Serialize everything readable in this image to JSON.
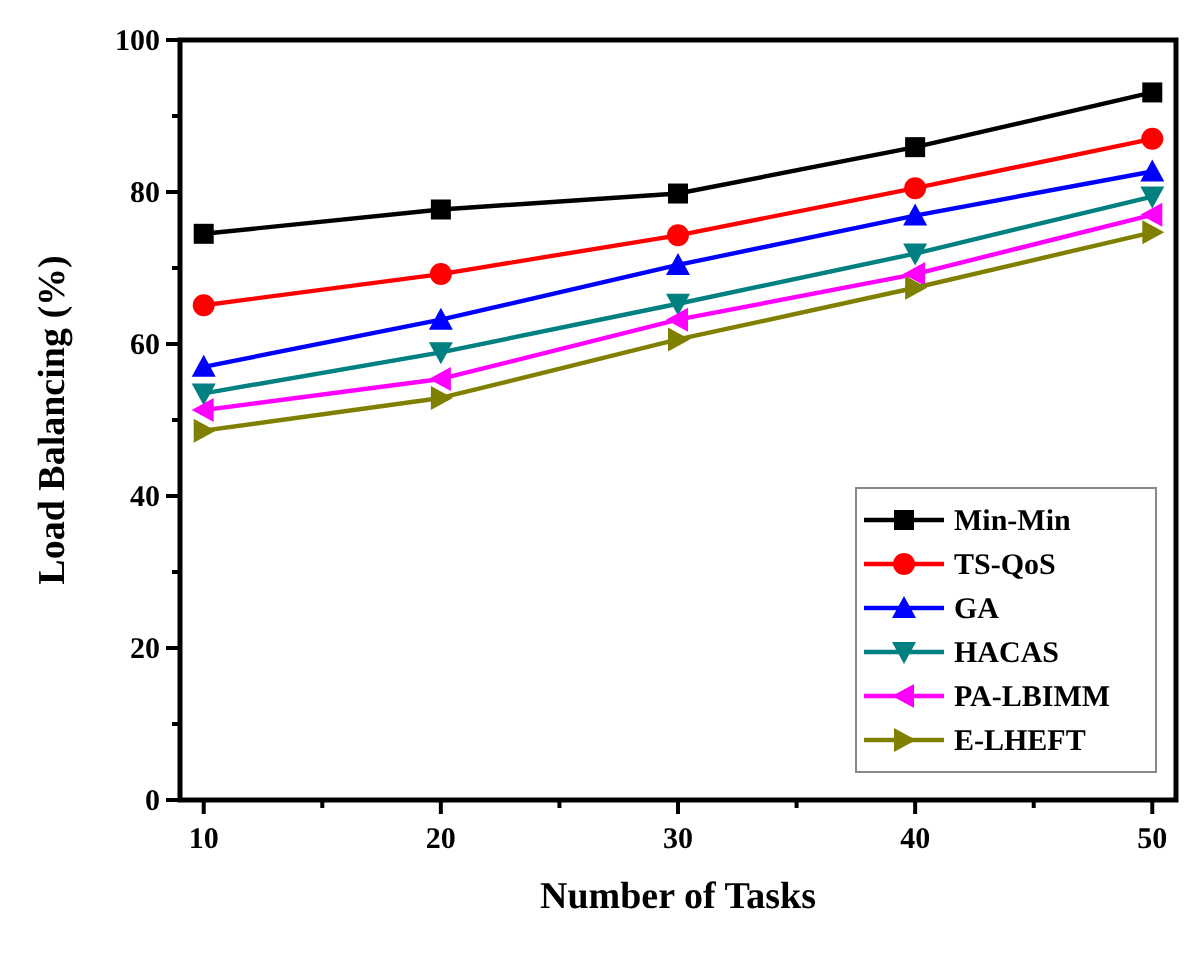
{
  "chart_data": {
    "type": "line",
    "xlabel": "Number of Tasks",
    "ylabel": "Load Balancing (%)",
    "x": [
      10,
      20,
      30,
      40,
      50
    ],
    "xlim": [
      9,
      51
    ],
    "xticks": [
      10,
      {
        "value": 15,
        "label": null
      },
      20,
      {
        "value": 25,
        "label": null
      },
      30,
      {
        "value": 35,
        "label": null
      },
      40,
      {
        "value": 45,
        "label": null
      },
      50
    ],
    "ylim": [
      0,
      100
    ],
    "yticks": [
      0,
      {
        "value": 10,
        "label": null
      },
      20,
      {
        "value": 30,
        "label": null
      },
      40,
      {
        "value": 50,
        "label": null
      },
      60,
      {
        "value": 70,
        "label": null
      },
      80,
      {
        "value": 90,
        "label": null
      },
      100
    ],
    "grid": false,
    "legend": "bottom right",
    "line_style": "solid",
    "series": [
      {
        "name": "Min-Min",
        "color": "#000000",
        "marker": "square",
        "values": [
          74.5,
          77.7,
          79.8,
          85.9,
          93.1
        ]
      },
      {
        "name": "TS-QoS",
        "color": "#ff0000",
        "marker": "circle",
        "values": [
          65.1,
          69.2,
          74.3,
          80.5,
          87.0
        ]
      },
      {
        "name": "GA",
        "color": "#0000ff",
        "marker": "triangle",
        "values": [
          57.0,
          63.2,
          70.4,
          76.9,
          82.7
        ]
      },
      {
        "name": "HACAS",
        "color": "#008080",
        "marker": "triangle-down",
        "values": [
          53.5,
          58.9,
          65.3,
          71.9,
          79.4
        ]
      },
      {
        "name": "PA-LBIMM",
        "color": "#ff00ff",
        "marker": "triangle-left",
        "values": [
          51.3,
          55.4,
          63.2,
          69.2,
          77.0
        ]
      },
      {
        "name": "E-LHEFT",
        "color": "#808000",
        "marker": "triangle-right",
        "values": [
          48.6,
          52.9,
          60.6,
          67.4,
          74.7
        ]
      }
    ]
  }
}
